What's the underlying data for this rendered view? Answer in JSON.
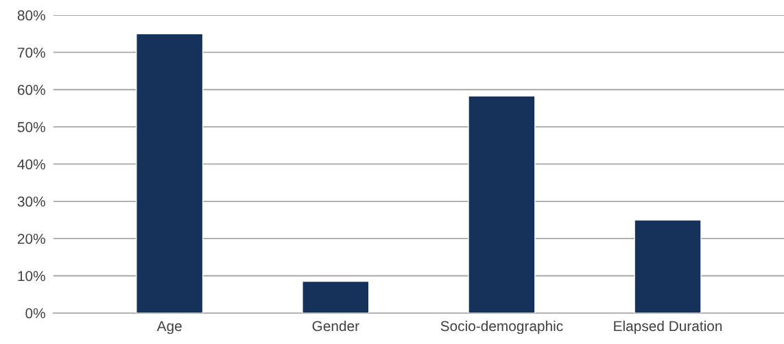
{
  "chart_data": {
    "type": "bar",
    "categories": [
      "Age",
      "Gender",
      "Socio-demographic",
      "Elapsed Duration"
    ],
    "values": [
      75,
      8.5,
      58.3,
      25
    ],
    "color": "#14325a",
    "ylim": [
      0,
      80
    ],
    "yticks": [
      {
        "value": 0,
        "label": "0%"
      },
      {
        "value": 10,
        "label": "10%"
      },
      {
        "value": 20,
        "label": "20%"
      },
      {
        "value": 30,
        "label": "30%"
      },
      {
        "value": 40,
        "label": "40%"
      },
      {
        "value": 50,
        "label": "50%"
      },
      {
        "value": 60,
        "label": "60%"
      },
      {
        "value": 70,
        "label": "70%"
      },
      {
        "value": 80,
        "label": "80%"
      }
    ],
    "grid": "y",
    "legend": false
  }
}
